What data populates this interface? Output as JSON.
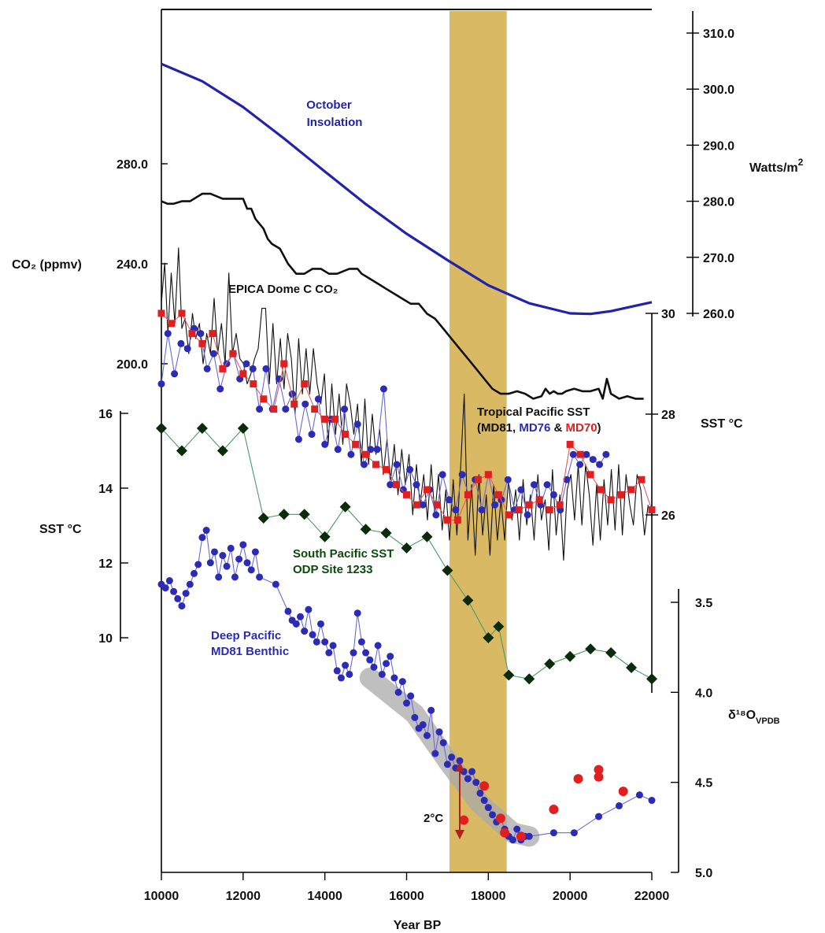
{
  "chart_data": {
    "type": "line",
    "xlabel": "Year BP",
    "xlim": [
      10000,
      22000
    ],
    "x_ticks": [
      "10000",
      "12000",
      "14000",
      "16000",
      "18000",
      "20000",
      "22000"
    ],
    "highlight_band": {
      "x": [
        17050,
        18450
      ],
      "color": "#d9b964"
    },
    "axes": {
      "insolation": {
        "label": "Watts/m",
        "label_sup": "2",
        "ticks": [
          "310.0",
          "300.0",
          "290.0",
          "280.0",
          "270.0",
          "260.0"
        ],
        "ylim": [
          258,
          312
        ]
      },
      "co2": {
        "label": "CO₂ (ppmv)",
        "ticks": [
          "280.0",
          "240.0",
          "200.0"
        ],
        "ylim": [
          180,
          285
        ]
      },
      "tropical_sst": {
        "label": "SST °C",
        "ticks": [
          "30",
          "28",
          "26"
        ],
        "ylim": [
          25,
          31
        ]
      },
      "south_sst": {
        "label": "SST °C",
        "ticks": [
          "16",
          "14",
          "12",
          "10"
        ],
        "ylim": [
          9,
          17
        ]
      },
      "d18o": {
        "label": "δ¹⁸O",
        "label_sub": "VPDB",
        "ticks": [
          "3.5",
          "4.0",
          "4.5",
          "5.0"
        ],
        "ylim": [
          3.3,
          5.1
        ]
      }
    },
    "annotations": {
      "insolation_line1": "October",
      "insolation_line2": "Insolation",
      "co2": "EPICA Dome C CO₂",
      "tropical_line1": "Tropical Pacific SST",
      "tropical_line2_a": "(MD81, ",
      "tropical_line2_b": "MD76",
      "tropical_line2_c": " & ",
      "tropical_line2_d": "MD70",
      "tropical_line2_e": ")",
      "south_line1": "South Pacific SST",
      "south_line2": "ODP Site 1233",
      "deep_line1": "Deep Pacific",
      "deep_line2": "MD81 Benthic",
      "delta": "2°C"
    },
    "colors": {
      "insolation": "#2222aa",
      "co2": "#111111",
      "md81": "#111111",
      "md76": "#2b2bb5",
      "md70": "#e02020",
      "south": "#0a4a0a",
      "deep": "#2b2bb5",
      "band": "#d9b964",
      "arrow": "#b32020"
    },
    "series": [
      {
        "name": "October Insolation",
        "axis": "insolation",
        "style": "line",
        "x": [
          10000,
          11000,
          12000,
          13000,
          14000,
          15000,
          16000,
          17000,
          18000,
          19000,
          20000,
          20500,
          21000,
          22000
        ],
        "y": [
          304.5,
          301.4,
          296.8,
          291.2,
          285.3,
          279.5,
          274.2,
          269.5,
          265.0,
          261.8,
          260.0,
          259.9,
          260.4,
          262.0
        ]
      },
      {
        "name": "EPICA Dome C CO₂",
        "axis": "co2",
        "style": "line",
        "x": [
          10000,
          10150,
          10300,
          10500,
          10700,
          11000,
          11200,
          11500,
          11800,
          12000,
          12100,
          12200,
          12300,
          12500,
          12600,
          12700,
          12900,
          13100,
          13300,
          13500,
          13700,
          13900,
          14100,
          14300,
          14600,
          14800,
          14900,
          15100,
          15300,
          15500,
          15700,
          15900,
          16100,
          16300,
          16500,
          16700,
          16900,
          17100,
          17300,
          17500,
          17700,
          17900,
          18100,
          18300,
          18500,
          18700,
          18900,
          19100,
          19300,
          19400,
          19500,
          19600,
          19700,
          19800,
          19900,
          20100,
          20300,
          20500,
          20700,
          20800,
          20900,
          21000,
          21200,
          21400,
          21600,
          21800
        ],
        "y": [
          265,
          264,
          264,
          265,
          265,
          268,
          268,
          266,
          266,
          266,
          262,
          262,
          258,
          254,
          250,
          248,
          246,
          240,
          236,
          236,
          238,
          238,
          236,
          236,
          238,
          238,
          236,
          234,
          232,
          230,
          228,
          226,
          224,
          224,
          220,
          218,
          214,
          210,
          206,
          202,
          198,
          194,
          190,
          188,
          188,
          189,
          188,
          186,
          187,
          190,
          188,
          189,
          188,
          188,
          189,
          190,
          189,
          189,
          190,
          186,
          194,
          188,
          186,
          187,
          186,
          186
        ]
      },
      {
        "name": "MD81",
        "axis": "tropical_sst",
        "style": "line",
        "x": [
          10000,
          10080,
          10160,
          10240,
          10330,
          10420,
          10500,
          10580,
          10670,
          10760,
          10840,
          10930,
          11020,
          11110,
          11200,
          11290,
          11380,
          11470,
          11560,
          11650,
          11740,
          11830,
          11920,
          12010,
          12100,
          12190,
          12280,
          12370,
          12460,
          12550,
          12640,
          12730,
          12820,
          12910,
          13000,
          13090,
          13180,
          13270,
          13360,
          13450,
          13540,
          13630,
          13720,
          13810,
          13900,
          13990,
          14080,
          14170,
          14260,
          14350,
          14440,
          14530,
          14620,
          14710,
          14800,
          14890,
          14980,
          15070,
          15160,
          15250,
          15340,
          15430,
          15520,
          15610,
          15700,
          15790,
          15880,
          15970,
          16060,
          16150,
          16240,
          16330,
          16420,
          16510,
          16600,
          16690,
          16780,
          16870,
          16960,
          17050,
          17140,
          17230,
          17320,
          17410,
          17500,
          17590,
          17680,
          17770,
          17860,
          17950,
          18040,
          18130,
          18220,
          18310,
          18400,
          18490,
          18580,
          18670,
          18760,
          18850,
          18940,
          19030,
          19120,
          19210,
          19300,
          19390,
          19480,
          19570,
          19660,
          19750,
          19840,
          19930,
          20020,
          20110,
          20200,
          20290,
          20380,
          20470,
          20560,
          20650,
          20740,
          20830,
          20920,
          21010,
          21100,
          21190,
          21280,
          21370,
          21460,
          21550,
          21640,
          21730,
          21820,
          21910
        ],
        "y": [
          30.2,
          31.0,
          29.6,
          30.8,
          29.8,
          31.3,
          29.7,
          29.9,
          29.2,
          30.0,
          29.5,
          29.8,
          29.0,
          29.6,
          29.2,
          30.3,
          29.2,
          29.8,
          29.0,
          30.8,
          29.2,
          29.6,
          29.1,
          29.0,
          28.6,
          28.8,
          29.1,
          29.3,
          30.1,
          30.1,
          28.6,
          29.8,
          28.6,
          29.5,
          28.5,
          29.6,
          29.1,
          28.0,
          29.5,
          28.4,
          29.3,
          28.4,
          29.3,
          28.6,
          28.2,
          28.8,
          27.4,
          28.6,
          27.6,
          28.4,
          27.4,
          28.6,
          28.2,
          27.6,
          28.2,
          27.0,
          28.3,
          27.0,
          28.0,
          27.2,
          27.7,
          26.8,
          27.5,
          26.7,
          27.4,
          26.4,
          27.3,
          26.6,
          27.2,
          26.0,
          27.0,
          26.2,
          26.8,
          25.9,
          27.0,
          26.0,
          26.8,
          25.7,
          26.5,
          25.5,
          26.7,
          25.6,
          26.9,
          28.4,
          25.5,
          26.6,
          25.2,
          26.8,
          25.6,
          26.4,
          25.2,
          26.6,
          25.5,
          26.3,
          25.5,
          26.7,
          25.9,
          26.5,
          25.5,
          26.7,
          25.8,
          26.4,
          25.5,
          26.8,
          25.9,
          26.3,
          25.3,
          26.9,
          25.6,
          26.4,
          25.1,
          26.5,
          26.8,
          25.9,
          27.0,
          25.8,
          27.0,
          26.4,
          25.4,
          26.6,
          25.5,
          26.7,
          25.8,
          26.9,
          25.7,
          27.0,
          25.6,
          26.8,
          26.2,
          25.8,
          26.8,
          26.5,
          25.6,
          26.2
        ]
      },
      {
        "name": "MD76",
        "axis": "tropical_sst",
        "style": "line+points",
        "x": [
          10000,
          10160,
          10320,
          10480,
          10640,
          10800,
          10960,
          11120,
          11280,
          11440,
          11600,
          11760,
          11920,
          12080,
          12240,
          12400,
          12560,
          12720,
          12880,
          13040,
          13200,
          13360,
          13520,
          13680,
          13840,
          14000,
          14160,
          14320,
          14480,
          14640,
          14800,
          14960,
          15120,
          15280,
          15440,
          15600,
          15760,
          15920,
          16080,
          16240,
          16400,
          16560,
          16720,
          16880,
          17040,
          17200,
          17360,
          17520,
          17680,
          17840,
          18000,
          18160,
          18320,
          18480,
          18640,
          18800,
          18960,
          19120,
          19280,
          19440,
          19600,
          19760,
          19920,
          20080,
          20240,
          20400,
          20560,
          20720,
          20880
        ],
        "y": [
          28.6,
          29.6,
          28.8,
          29.4,
          29.3,
          29.7,
          29.6,
          28.9,
          29.2,
          28.5,
          29.0,
          29.2,
          28.7,
          29.0,
          28.9,
          28.1,
          28.9,
          28.1,
          28.7,
          28.1,
          28.4,
          27.5,
          28.2,
          27.6,
          28.3,
          27.4,
          27.9,
          27.3,
          28.1,
          27.2,
          27.8,
          27.0,
          27.3,
          27.3,
          28.5,
          26.6,
          27.0,
          26.5,
          26.9,
          26.6,
          26.2,
          26.5,
          26.0,
          26.8,
          26.3,
          26.1,
          26.8,
          26.4,
          26.7,
          26.1,
          26.8,
          26.2,
          26.3,
          26.7,
          26.1,
          26.5,
          26.0,
          26.6,
          26.2,
          26.6,
          26.4,
          26.1,
          26.7,
          27.2,
          27.0,
          27.2,
          27.1,
          27.0,
          27.2
        ]
      },
      {
        "name": "MD70",
        "axis": "tropical_sst",
        "style": "line+points",
        "x": [
          10000,
          10250,
          10500,
          10750,
          11000,
          11250,
          11500,
          11750,
          12000,
          12250,
          12500,
          12750,
          13000,
          13250,
          13500,
          13750,
          14000,
          14250,
          14500,
          14750,
          15000,
          15250,
          15500,
          15750,
          16000,
          16250,
          16500,
          16750,
          17000,
          17250,
          17500,
          17750,
          18000,
          18250,
          18500,
          18750,
          19000,
          19250,
          19500,
          19750,
          20000,
          20250,
          20500,
          20750,
          21000,
          21250,
          21500,
          21750,
          22000
        ],
        "y": [
          30.0,
          29.8,
          30.0,
          29.6,
          29.4,
          29.6,
          28.9,
          29.2,
          28.8,
          28.6,
          28.3,
          28.1,
          29.0,
          28.2,
          28.6,
          28.1,
          27.9,
          27.9,
          27.6,
          27.4,
          27.2,
          27.0,
          26.9,
          26.6,
          26.4,
          26.2,
          26.5,
          26.2,
          25.9,
          25.9,
          26.4,
          26.7,
          26.8,
          26.4,
          26.0,
          26.1,
          26.2,
          26.3,
          26.1,
          26.2,
          27.4,
          27.2,
          26.8,
          26.5,
          26.3,
          26.4,
          26.5,
          26.7,
          26.1
        ]
      },
      {
        "name": "South Pacific SST",
        "axis": "south_sst",
        "style": "line+diamonds",
        "x": [
          10000,
          10500,
          11000,
          11500,
          12000,
          12500,
          13000,
          13500,
          14000,
          14500,
          15000,
          15500,
          16000,
          16500,
          17000,
          17500,
          18000,
          18250,
          18500,
          19000,
          19500,
          20000,
          20500,
          21000,
          21500,
          22000
        ],
        "y": [
          15.6,
          15.0,
          15.6,
          15.0,
          15.6,
          13.2,
          13.3,
          13.3,
          12.7,
          13.5,
          12.9,
          12.8,
          12.4,
          12.7,
          11.8,
          11.0,
          10.0,
          10.3,
          9.0,
          8.9,
          9.3,
          9.5,
          9.7,
          9.6,
          9.2,
          8.9
        ]
      },
      {
        "name": "Deep Pacific MD81 Benthic",
        "axis": "d18o",
        "style": "line+points",
        "x": [
          10000,
          10100,
          10200,
          10300,
          10400,
          10500,
          10600,
          10700,
          10800,
          10900,
          11000,
          11100,
          11200,
          11300,
          11400,
          11500,
          11600,
          11700,
          11800,
          11900,
          12000,
          12100,
          12200,
          12300,
          12400,
          12800,
          13100,
          13200,
          13300,
          13400,
          13500,
          13600,
          13700,
          13800,
          13900,
          14000,
          14100,
          14200,
          14300,
          14400,
          14500,
          14600,
          14700,
          14800,
          14900,
          15000,
          15100,
          15200,
          15300,
          15400,
          15500,
          15600,
          15700,
          15800,
          15900,
          16000,
          16100,
          16200,
          16300,
          16400,
          16500,
          16600,
          16700,
          16800,
          16900,
          17000,
          17100,
          17200,
          17300,
          17400,
          17500,
          17600,
          17700,
          17800,
          17900,
          18000,
          18100,
          18200,
          18300,
          18400,
          18500,
          18600,
          18700,
          18800,
          18900,
          19000,
          19600,
          20100,
          20700,
          21200,
          21700,
          22000
        ],
        "y": [
          3.4,
          3.42,
          3.38,
          3.44,
          3.48,
          3.52,
          3.45,
          3.4,
          3.34,
          3.29,
          3.14,
          3.1,
          3.28,
          3.22,
          3.36,
          3.24,
          3.3,
          3.2,
          3.36,
          3.26,
          3.18,
          3.28,
          3.32,
          3.22,
          3.36,
          3.4,
          3.55,
          3.6,
          3.62,
          3.58,
          3.66,
          3.54,
          3.68,
          3.72,
          3.62,
          3.72,
          3.78,
          3.74,
          3.88,
          3.92,
          3.85,
          3.9,
          3.78,
          3.56,
          3.72,
          3.78,
          3.82,
          3.86,
          3.74,
          3.9,
          3.84,
          3.8,
          3.92,
          4.0,
          3.94,
          4.06,
          4.02,
          4.14,
          4.2,
          4.18,
          4.24,
          4.1,
          4.34,
          4.22,
          4.28,
          4.4,
          4.36,
          4.42,
          4.38,
          4.44,
          4.48,
          4.44,
          4.5,
          4.56,
          4.6,
          4.64,
          4.68,
          4.72,
          4.7,
          4.76,
          4.8,
          4.82,
          4.76,
          4.82,
          4.8,
          4.8,
          4.78,
          4.78,
          4.69,
          4.63,
          4.57,
          4.6
        ]
      },
      {
        "name": "Deep Pacific (red)",
        "axis": "d18o",
        "style": "points",
        "x": [
          17400,
          17900,
          18300,
          18400,
          18800,
          19600,
          20200,
          20700,
          20700,
          21300
        ],
        "y": [
          4.71,
          4.52,
          4.7,
          4.78,
          4.8,
          4.65,
          4.48,
          4.43,
          4.47,
          4.55
        ]
      }
    ]
  }
}
